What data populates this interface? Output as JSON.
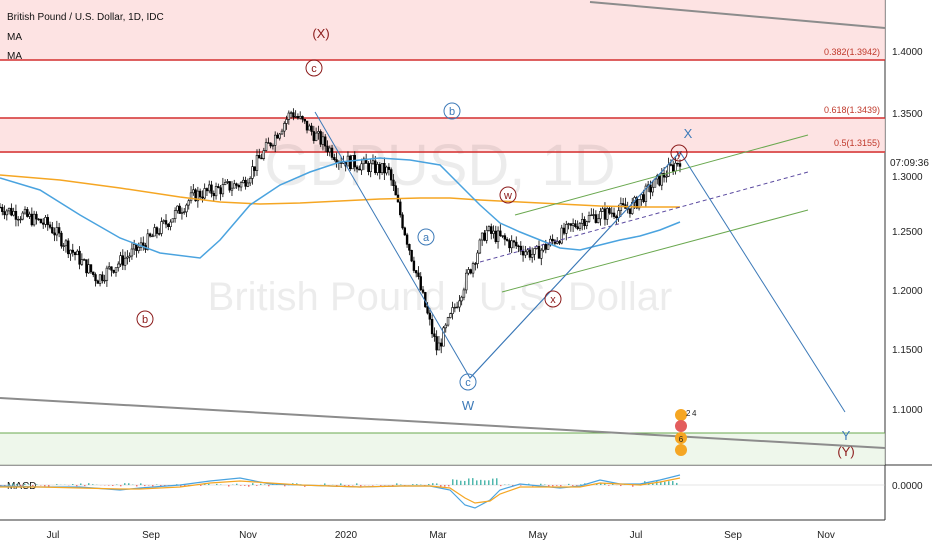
{
  "header": {
    "symbol_line": "British Pound / U.S. Dollar, 1D, IDC",
    "indicators": [
      "MA",
      "MA"
    ]
  },
  "watermark": {
    "ticker": "GBPUSD, 1D",
    "name": "British Pound / U.S. Dollar"
  },
  "price_axis": {
    "ticks": [
      "1.4000",
      "1.3500",
      "1.3000",
      "1.2500",
      "1.2000",
      "1.1500",
      "1.1000"
    ],
    "current_time_label": "07:09:36",
    "macd_tick": "0.0000"
  },
  "time_axis": {
    "ticks": [
      "Jul",
      "Sep",
      "Nov",
      "2020",
      "Mar",
      "May",
      "Jul",
      "Sep",
      "Nov"
    ]
  },
  "fib_levels": [
    {
      "label": "0.382(1.3942)",
      "value": 1.3942
    },
    {
      "label": "0.618(1.3439)",
      "value": 1.3439
    },
    {
      "label": "0.5(1.3155)",
      "value": 1.3155
    }
  ],
  "macd": {
    "label": "MACD"
  },
  "wave_labels": {
    "X_upper": "(X)",
    "Y_lower": "(Y)",
    "c_red_top": "c",
    "b_red": "b",
    "b_blue": "b",
    "a_blue": "a",
    "c_blue": "c",
    "W_blue": "W",
    "w_red": "w",
    "x_red": "x",
    "y_red": "y",
    "X_blue": "X",
    "Y_blue": "Y"
  },
  "event_badges": [
    "2",
    "4",
    "6"
  ],
  "colors": {
    "fib_line": "#d32f2f",
    "fib_zone": "#fcdcdc",
    "wave_red": "#8b1a1a",
    "wave_blue": "#3d7ab8",
    "ma_blue": "#4aa3df",
    "ma_orange": "#f5a623",
    "channel_green": "#6aa84f",
    "trend_gray": "#8c8c8c",
    "candle": "#000000"
  },
  "chart_data": {
    "type": "candlestick",
    "instrument": "British Pound / U.S. Dollar",
    "timeframe": "1D",
    "close_series": [
      {
        "x": "Jun 2019",
        "y": 1.27
      },
      {
        "x": "Jul 2019",
        "y": 1.255
      },
      {
        "x": "Aug 2019",
        "y": 1.21
      },
      {
        "x": "Sep 2019",
        "y": 1.24
      },
      {
        "x": "Oct 2019",
        "y": 1.28
      },
      {
        "x": "Nov 2019",
        "y": 1.29
      },
      {
        "x": "Dec 2019",
        "y": 1.35
      },
      {
        "x": "Jan 2020",
        "y": 1.31
      },
      {
        "x": "Feb 2020",
        "y": 1.3
      },
      {
        "x": "Mar 2020",
        "y": 1.15
      },
      {
        "x": "Apr 2020",
        "y": 1.25
      },
      {
        "x": "May 2020",
        "y": 1.23
      },
      {
        "x": "Jun 2020",
        "y": 1.26
      },
      {
        "x": "Jul 2020",
        "y": 1.27
      },
      {
        "x": "Aug 2020",
        "y": 1.31
      }
    ],
    "ylim": [
      1.06,
      1.425
    ],
    "ylabel": "",
    "xlabel": ""
  }
}
